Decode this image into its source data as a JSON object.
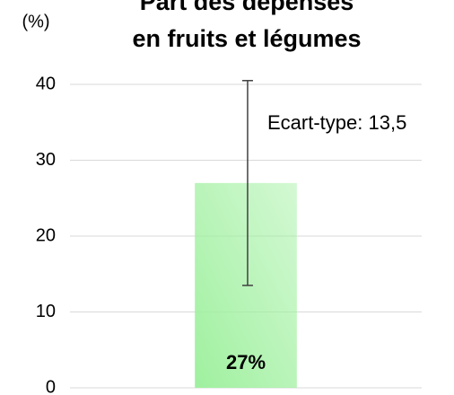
{
  "chart_data": {
    "type": "bar",
    "title": [
      "Part des dépenses",
      "en fruits et légumes"
    ],
    "y_label": "(%)",
    "annotation": "Ecart-type: 13,5",
    "categories": [
      null
    ],
    "values": [
      27
    ],
    "value_labels": [
      "27%"
    ],
    "errors": [
      13.5
    ],
    "color": "#9ff09f",
    "ylim": [
      0,
      40
    ],
    "yticks": [
      0,
      10,
      20,
      30,
      40
    ],
    "grid": true
  }
}
